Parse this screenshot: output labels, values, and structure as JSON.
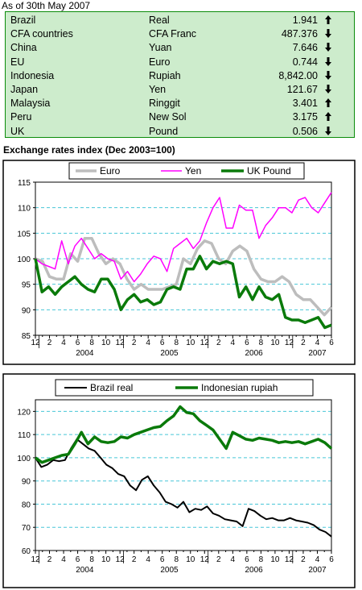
{
  "header": {
    "as_of": "As of 30th May 2007"
  },
  "rates_table": [
    {
      "country": "Brazil",
      "currency": "Real",
      "value": "1.941",
      "trend": "up"
    },
    {
      "country": "CFA countries",
      "currency": "CFA Franc",
      "value": "487.376",
      "trend": "down"
    },
    {
      "country": "China",
      "currency": "Yuan",
      "value": "7.646",
      "trend": "down"
    },
    {
      "country": "EU",
      "currency": "Euro",
      "value": "0.744",
      "trend": "down"
    },
    {
      "country": "Indonesia",
      "currency": "Rupiah",
      "value": "8,842.00",
      "trend": "down"
    },
    {
      "country": "Japan",
      "currency": "Yen",
      "value": "121.67",
      "trend": "down"
    },
    {
      "country": "Malaysia",
      "currency": "Ringgit",
      "value": "3.401",
      "trend": "up"
    },
    {
      "country": "Peru",
      "currency": "New Sol",
      "value": "3.175",
      "trend": "up"
    },
    {
      "country": "UK",
      "currency": "Pound",
      "value": "0.506",
      "trend": "down"
    }
  ],
  "colors": {
    "table_bg": "#cdeccc",
    "table_border": "#0a8c0a",
    "euro": "#bdbdbd",
    "yen": "#ff00ff",
    "pound": "#0a7a0a",
    "real": "#000000",
    "rupiah": "#0a7a0a",
    "gridline": "#48c6d8"
  },
  "chart_data": [
    {
      "type": "line",
      "title": "Exchange rates index (Dec 2003=100)",
      "x_tick_labels": [
        "12",
        "2",
        "4",
        "6",
        "8",
        "10",
        "12",
        "2",
        "4",
        "6",
        "8",
        "10",
        "12",
        "2",
        "4",
        "6",
        "8",
        "10",
        "12",
        "2",
        "4",
        "6"
      ],
      "x_year_labels": [
        "2004",
        "2005",
        "2006",
        "2007"
      ],
      "x_range": [
        0,
        42
      ],
      "ylim": [
        85,
        115
      ],
      "yticks": [
        85,
        90,
        95,
        100,
        105,
        110,
        115
      ],
      "grid": true,
      "legend_position": "top",
      "series": [
        {
          "name": "Euro",
          "color": "#bdbdbd",
          "width": 3.5,
          "values": [
            100,
            99.5,
            96.5,
            96,
            96,
            101,
            99.5,
            104,
            104,
            101,
            99,
            100,
            99,
            96,
            94,
            95,
            94,
            94,
            94,
            94.5,
            95,
            100,
            99,
            102,
            103.5,
            103,
            100,
            99,
            101.5,
            102.5,
            101.5,
            98,
            96,
            95.5,
            95.5,
            96.5,
            95.5,
            93,
            92,
            92,
            90.5,
            89,
            90.5
          ]
        },
        {
          "name": "Yen",
          "color": "#ff00ff",
          "width": 1.5,
          "values": [
            100,
            99,
            98.5,
            98,
            103.5,
            99,
            102.5,
            104,
            102,
            100,
            101,
            100,
            99.5,
            96,
            97.5,
            95.5,
            97,
            99,
            100.5,
            100,
            97.5,
            102,
            103,
            104,
            102,
            103.5,
            107,
            110,
            112,
            106,
            106,
            110.5,
            109.5,
            109.5,
            104,
            106.5,
            108,
            110,
            110,
            109,
            111.5,
            112,
            110,
            109,
            111,
            113
          ]
        },
        {
          "name": "UK Pound",
          "color": "#0a7a0a",
          "width": 3.5,
          "values": [
            100,
            93.5,
            94.5,
            93,
            94.5,
            95.5,
            96.5,
            95,
            94,
            93.5,
            96,
            96,
            94,
            90,
            92,
            93,
            91.5,
            92,
            91,
            91.5,
            94,
            94.5,
            94,
            98,
            98,
            100.5,
            98,
            99.5,
            99,
            99.5,
            99,
            92.5,
            94.5,
            92,
            94.5,
            92.5,
            92,
            93,
            88.5,
            88,
            88,
            87.5,
            88,
            88.5,
            86.5,
            87
          ]
        }
      ]
    },
    {
      "type": "line",
      "title": "",
      "x_tick_labels": [
        "12",
        "2",
        "4",
        "6",
        "8",
        "10",
        "12",
        "2",
        "4",
        "6",
        "8",
        "10",
        "12",
        "2",
        "4",
        "6",
        "8",
        "10",
        "12",
        "2",
        "4",
        "6"
      ],
      "x_year_labels": [
        "2004",
        "2005",
        "2006",
        "2007"
      ],
      "x_range": [
        0,
        42
      ],
      "ylim": [
        60,
        125
      ],
      "yticks": [
        60,
        70,
        80,
        90,
        100,
        110,
        120
      ],
      "grid": true,
      "legend_position": "top",
      "series": [
        {
          "name": "Brazil real",
          "color": "#000000",
          "width": 2,
          "values": [
            100,
            96,
            97,
            99,
            98.5,
            99,
            104,
            108,
            106,
            104,
            103,
            100,
            97,
            95.5,
            93,
            92,
            88,
            86,
            90.5,
            92,
            88,
            85,
            81,
            80,
            78.5,
            81,
            76.5,
            78,
            77.5,
            79,
            76,
            75,
            73.5,
            73,
            72.5,
            70.5,
            78,
            77,
            75,
            73.5,
            74,
            73,
            73,
            74,
            73,
            72.5,
            72,
            71,
            69,
            68,
            66
          ]
        },
        {
          "name": "Indonesian rupiah",
          "color": "#0a7a0a",
          "width": 3.5,
          "values": [
            100,
            98,
            99,
            100,
            101,
            101.5,
            106,
            111,
            106,
            109,
            107,
            106.5,
            107,
            109,
            108.5,
            110,
            111,
            112,
            113,
            113.5,
            116,
            118,
            122,
            119.5,
            119,
            116,
            114,
            112,
            108,
            104,
            111,
            109.5,
            108,
            107.5,
            108.5,
            108,
            107.5,
            106.5,
            107,
            106.5,
            107,
            106,
            107,
            108,
            106.5,
            104
          ]
        }
      ]
    }
  ]
}
